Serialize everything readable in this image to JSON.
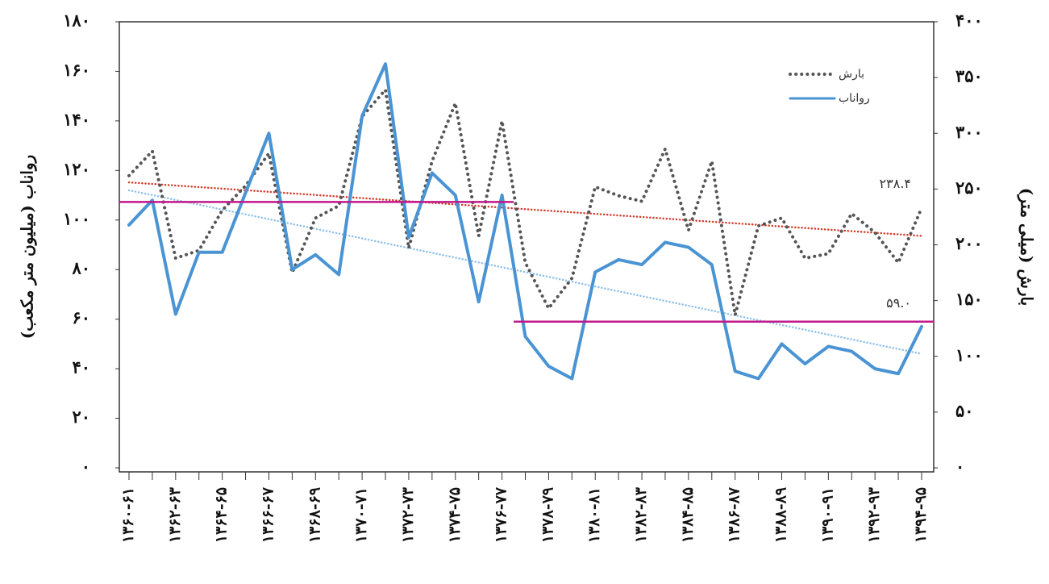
{
  "chart_data": {
    "type": "line",
    "y_title": "رواناب (میلیون متر مکعب)",
    "y2_title": "بارش (میلی متر)",
    "categories": [
      "۱۳۶۰-۶۱",
      null,
      "۱۳۶۲-۶۳",
      null,
      "۱۳۶۴-۶۵",
      null,
      "۱۳۶۶-۶۷",
      null,
      "۱۳۶۸-۶۹",
      null,
      "۱۳۷۰-۷۱",
      null,
      "۱۳۷۲-۷۳",
      null,
      "۱۳۷۴-۷۵",
      null,
      "۱۳۷۶-۷۷",
      null,
      "۱۳۷۸-۷۹",
      null,
      "۱۳۸۰-۸۱",
      null,
      "۱۳۸۲-۸۳",
      null,
      "۱۳۸۴-۸۵",
      null,
      "۱۳۸۶-۸۷",
      null,
      "۱۳۸۸-۸۹",
      null,
      "۱۳۹۰-۹۱",
      null,
      "۱۳۹۲-۹۳",
      null,
      "۱۳۹۴-۹۵"
    ],
    "series": [
      {
        "name": "بارش",
        "color": "#555555",
        "style": "dotted",
        "axis": "y2",
        "values": [
          262,
          284,
          188,
          195,
          231,
          253,
          282,
          175,
          224,
          235,
          315,
          339,
          197,
          275,
          327,
          208,
          311,
          184,
          143,
          170,
          252,
          244,
          239,
          286,
          213,
          275,
          137,
          217,
          224,
          188,
          192,
          228,
          211,
          184,
          233
        ]
      },
      {
        "name": "رواناب",
        "color": "#4a94d4",
        "style": "solid",
        "axis": "y",
        "values": [
          98,
          108,
          62,
          87,
          87,
          111,
          135,
          80,
          86,
          78,
          142,
          163,
          93,
          119,
          110,
          67,
          110,
          53,
          41,
          36,
          79,
          84,
          82,
          91,
          89,
          82,
          39,
          36,
          50,
          42,
          49,
          47,
          40,
          38,
          57
        ]
      }
    ],
    "trendlines": [
      {
        "axis": "y2",
        "color": "#d43a2a",
        "values": [
          256,
          208
        ]
      },
      {
        "axis": "y",
        "color": "#8ec0ea",
        "values": [
          112,
          46
        ]
      }
    ],
    "reference_lines": [
      {
        "axis": "y2",
        "value": 238.4,
        "label": "۲۳۸.۴",
        "span": [
          0,
          16
        ],
        "color": "#c0178a"
      },
      {
        "axis": "y",
        "value": 59.0,
        "label": "۵۹.۰",
        "span": [
          17,
          34
        ],
        "color": "#c0178a"
      }
    ],
    "ylim": [
      0,
      180
    ],
    "yticks": [
      {
        "value": 0,
        "label": "۰"
      },
      {
        "value": 20,
        "label": "۲۰"
      },
      {
        "value": 40,
        "label": "۴۰"
      },
      {
        "value": 60,
        "label": "۶۰"
      },
      {
        "value": 80,
        "label": "۸۰"
      },
      {
        "value": 100,
        "label": "۱۰۰"
      },
      {
        "value": 120,
        "label": "۱۲۰"
      },
      {
        "value": 140,
        "label": "۱۴۰"
      },
      {
        "value": 160,
        "label": "۱۶۰"
      },
      {
        "value": 180,
        "label": "۱۸۰"
      }
    ],
    "y2lim": [
      0,
      400
    ],
    "y2ticks": [
      {
        "value": 0,
        "label": "۰"
      },
      {
        "value": 50,
        "label": "۵۰"
      },
      {
        "value": 100,
        "label": "۱۰۰"
      },
      {
        "value": 150,
        "label": "۱۵۰"
      },
      {
        "value": 200,
        "label": "۲۰۰"
      },
      {
        "value": 250,
        "label": "۲۵۰"
      },
      {
        "value": 300,
        "label": "۳۰۰"
      },
      {
        "value": 350,
        "label": "۳۵۰"
      },
      {
        "value": 400,
        "label": "۴۰۰"
      }
    ],
    "legend": "top-right"
  }
}
